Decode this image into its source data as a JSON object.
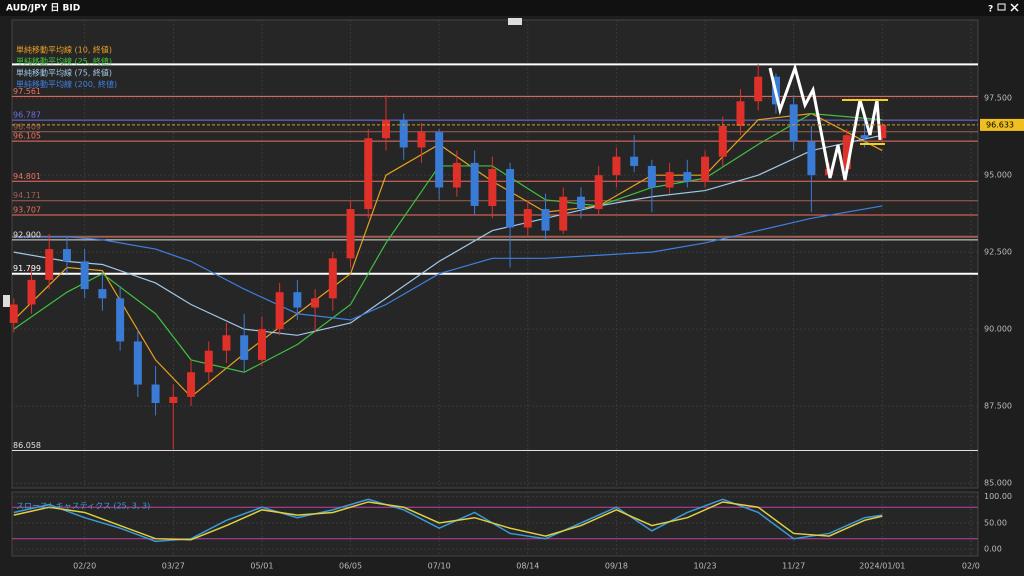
{
  "window": {
    "title": "AUD/JPY 日 BID",
    "help": "?"
  },
  "chart_data": {
    "type": "candlestick",
    "up_color": "#e0302a",
    "down_color": "#3a7bd5",
    "open": [
      90.2,
      90.8,
      91.6,
      92.6,
      92.2,
      91.3,
      91.0,
      89.6,
      88.2,
      87.6,
      87.8,
      88.6,
      89.3,
      89.8,
      89.0,
      90.0,
      91.2,
      90.7,
      91.0,
      92.3,
      93.9,
      96.2,
      96.8,
      95.9,
      96.4,
      94.6,
      95.4,
      94.0,
      95.2,
      93.3,
      93.9,
      93.2,
      94.3,
      93.9,
      95.0,
      95.6,
      95.3,
      94.6,
      95.1,
      94.8,
      95.6,
      96.6,
      97.4,
      98.2,
      97.3,
      96.1,
      95.0,
      95.2,
      96.3,
      96.2
    ],
    "high": [
      91.0,
      92.0,
      93.1,
      93.0,
      92.6,
      91.8,
      91.4,
      90.0,
      88.8,
      88.2,
      89.0,
      89.6,
      90.2,
      90.5,
      90.4,
      91.5,
      91.6,
      91.3,
      92.5,
      94.2,
      96.5,
      97.6,
      97.0,
      96.7,
      96.5,
      95.8,
      95.8,
      95.6,
      95.4,
      94.2,
      94.4,
      94.6,
      94.6,
      95.3,
      95.9,
      96.3,
      95.5,
      95.4,
      95.5,
      95.8,
      96.9,
      97.8,
      98.6,
      98.3,
      97.6,
      96.6,
      95.4,
      96.5,
      96.8,
      96.7
    ],
    "low": [
      89.9,
      90.5,
      91.3,
      91.8,
      91.0,
      90.6,
      89.3,
      87.8,
      87.2,
      86.1,
      87.5,
      88.2,
      88.9,
      88.6,
      88.8,
      89.8,
      90.3,
      89.9,
      90.6,
      92.0,
      93.6,
      95.8,
      95.5,
      95.4,
      94.2,
      94.3,
      93.7,
      93.6,
      92.0,
      93.0,
      92.9,
      93.1,
      93.6,
      93.7,
      94.6,
      95.1,
      93.8,
      94.4,
      94.6,
      94.6,
      95.3,
      96.3,
      97.1,
      97.0,
      95.8,
      93.8,
      94.9,
      95.0,
      95.9,
      96.0
    ],
    "close": [
      90.8,
      91.6,
      92.6,
      92.2,
      91.3,
      91.0,
      89.6,
      88.2,
      87.6,
      87.8,
      88.6,
      89.3,
      89.8,
      89.0,
      90.0,
      91.2,
      90.7,
      91.0,
      92.3,
      93.9,
      96.2,
      96.8,
      95.9,
      96.4,
      94.6,
      95.4,
      94.0,
      95.2,
      93.3,
      93.9,
      93.2,
      94.3,
      93.9,
      95.0,
      95.6,
      95.3,
      94.6,
      95.1,
      94.8,
      95.6,
      96.6,
      97.4,
      98.2,
      97.3,
      96.1,
      95.0,
      95.2,
      96.3,
      96.2,
      96.633
    ],
    "moving_averages": [
      {
        "name": "単純移動平均線 (10, 終値)",
        "color": "#e8a020",
        "x": [
          0,
          3,
          5,
          8,
          10,
          13,
          16,
          19,
          21,
          24,
          27,
          30,
          33,
          36,
          39,
          42,
          45,
          49
        ],
        "values": [
          90.3,
          92.0,
          91.9,
          89.0,
          87.8,
          89.2,
          90.5,
          91.8,
          95.0,
          96.0,
          94.8,
          93.8,
          94.0,
          95.0,
          95.0,
          96.8,
          97.0,
          95.8
        ]
      },
      {
        "name": "単純移動平均線 (25, 終値)",
        "color": "#40c040",
        "x": [
          0,
          3,
          5,
          8,
          10,
          13,
          16,
          19,
          21,
          24,
          27,
          30,
          33,
          36,
          39,
          42,
          45,
          49
        ],
        "values": [
          90.0,
          91.2,
          91.8,
          90.5,
          89.0,
          88.6,
          89.5,
          90.8,
          92.8,
          95.3,
          95.3,
          94.2,
          94.0,
          94.6,
          94.9,
          96.0,
          97.0,
          96.8
        ]
      },
      {
        "name": "単純移動平均線 (75, 終値)",
        "color": "#a0c8e8",
        "x": [
          0,
          3,
          5,
          8,
          10,
          13,
          16,
          19,
          21,
          24,
          27,
          30,
          33,
          36,
          39,
          42,
          45,
          49
        ],
        "values": [
          92.5,
          92.2,
          92.1,
          91.5,
          90.8,
          90.0,
          89.8,
          90.2,
          91.0,
          92.2,
          93.2,
          93.6,
          94.0,
          94.3,
          94.5,
          95.0,
          95.8,
          96.3
        ]
      },
      {
        "name": "単純移動平均線 (200, 終値)",
        "color": "#4080e0",
        "x": [
          0,
          3,
          5,
          8,
          10,
          13,
          16,
          19,
          21,
          24,
          27,
          30,
          33,
          36,
          39,
          42,
          45,
          49
        ],
        "values": [
          93.0,
          93.0,
          92.9,
          92.6,
          92.2,
          91.3,
          90.5,
          90.3,
          90.8,
          91.8,
          92.3,
          92.3,
          92.4,
          92.5,
          92.8,
          93.2,
          93.6,
          94.0
        ]
      }
    ],
    "levels": [
      {
        "value": 98.6,
        "color": "#ffffff"
      },
      {
        "value": 97.561,
        "label": "97.561",
        "color": "#f07060"
      },
      {
        "value": 96.787,
        "label": "96.787",
        "color": "#7070e0"
      },
      {
        "value": 96.409,
        "label": "96.409",
        "color": "#a06050"
      },
      {
        "value": 96.105,
        "label": "96.105",
        "color": "#f07060"
      },
      {
        "value": 94.801,
        "label": "94.801",
        "color": "#f07060"
      },
      {
        "value": 94.171,
        "label": "94.171",
        "color": "#a06050"
      },
      {
        "value": 93.707,
        "label": "93.707",
        "color": "#f07060"
      },
      {
        "value": 93.0,
        "color": "#a06050"
      },
      {
        "value": 92.9,
        "label": "92.900",
        "color": "#e0e0e0"
      },
      {
        "value": 91.799,
        "label": "91.799",
        "color": "#ffffff"
      },
      {
        "value": 86.058,
        "label": "86.058",
        "color": "#e0e0e0"
      }
    ],
    "last_price": 96.633,
    "ylim": [
      84.84,
      100.04
    ],
    "yticks": [
      {
        "value": 97.5,
        "label": "97.500"
      },
      {
        "value": 95,
        "label": "95.000"
      },
      {
        "value": 92.5,
        "label": "92.500"
      },
      {
        "value": 90,
        "label": "90.000"
      },
      {
        "value": 87.5,
        "label": "87.500"
      },
      {
        "value": 85,
        "label": "85.000"
      }
    ],
    "xlim": [
      -0.1,
      54.4
    ],
    "xticks": [
      {
        "value": 4,
        "label": "02/20"
      },
      {
        "value": 9,
        "label": "03/27"
      },
      {
        "value": 14,
        "label": "05/01"
      },
      {
        "value": 19,
        "label": "06/05"
      },
      {
        "value": 24,
        "label": "07/10"
      },
      {
        "value": 29,
        "label": "08/14"
      },
      {
        "value": 34,
        "label": "09/18"
      },
      {
        "value": 39,
        "label": "10/23"
      },
      {
        "value": 44,
        "label": "11/27"
      },
      {
        "value": 49,
        "label": "2024/01/01"
      },
      {
        "value": 54,
        "label": "02/0"
      }
    ],
    "stochastic": {
      "name": "スローストキャスティクス (25, 3, 3)",
      "ylim": [
        -13,
        109
      ],
      "yticks": [
        {
          "value": 100,
          "label": "100.00"
        },
        {
          "value": 50,
          "label": "50.00"
        },
        {
          "value": 0,
          "label": "0.00"
        }
      ],
      "levels": [
        80,
        20
      ],
      "level_color": "#c040a0",
      "series": [
        {
          "color": "#3a9ad9",
          "x": [
            0,
            2,
            4,
            6,
            8,
            10,
            12,
            14,
            16,
            18,
            20,
            22,
            24,
            26,
            28,
            30,
            32,
            34,
            36,
            38,
            40,
            42,
            44,
            46,
            48,
            49
          ],
          "values": [
            70,
            85,
            60,
            40,
            15,
            20,
            55,
            80,
            60,
            75,
            95,
            75,
            40,
            70,
            30,
            20,
            50,
            80,
            35,
            70,
            95,
            70,
            20,
            30,
            60,
            65
          ]
        },
        {
          "color": "#e0d040",
          "x": [
            0,
            2,
            4,
            6,
            8,
            10,
            12,
            14,
            16,
            18,
            20,
            22,
            24,
            26,
            28,
            30,
            32,
            34,
            36,
            38,
            40,
            42,
            44,
            46,
            48,
            49
          ],
          "values": [
            65,
            80,
            70,
            45,
            20,
            18,
            45,
            75,
            65,
            70,
            90,
            80,
            50,
            60,
            40,
            25,
            45,
            75,
            45,
            60,
            90,
            80,
            30,
            25,
            55,
            63
          ]
        }
      ]
    }
  }
}
